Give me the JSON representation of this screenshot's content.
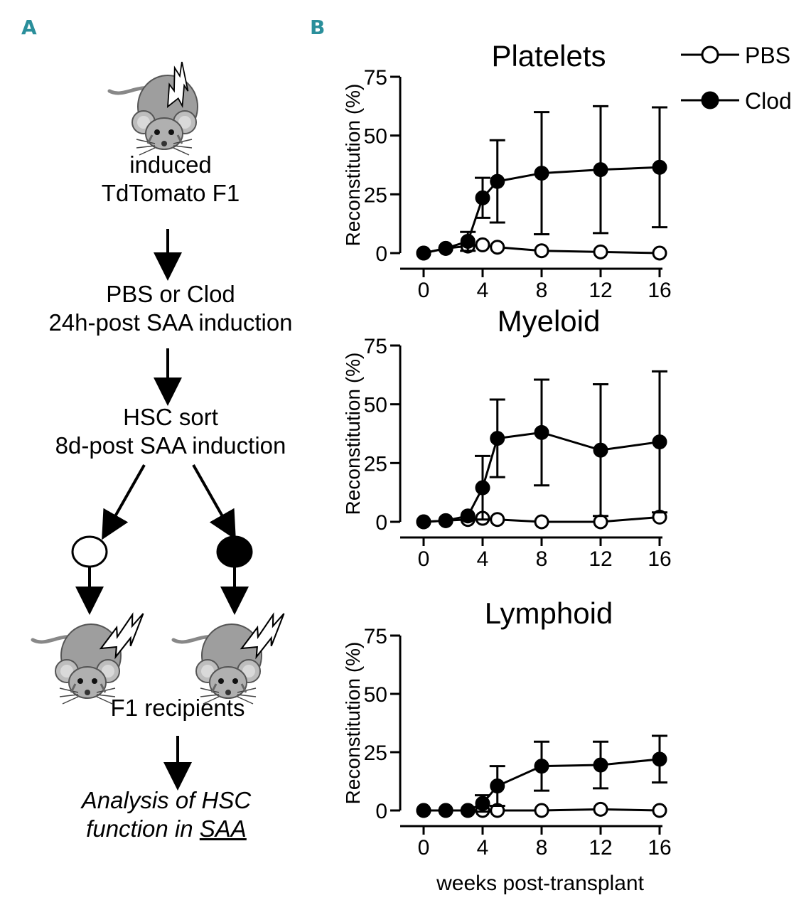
{
  "panels": {
    "a_label": "A",
    "b_label": "B"
  },
  "flow": {
    "step1_line1": "induced",
    "step1_line2": "TdTomato F1",
    "step2_line1": "PBS or Clod",
    "step2_line2": "24h-post SAA induction",
    "step3_line1": "HSC sort",
    "step3_line2": "8d-post SAA induction",
    "step4": "F1 recipients",
    "step5_line1": "Analysis of HSC",
    "step5_line2_prefix": "function in ",
    "step5_line2_underlined": "SAA",
    "icons": [
      "mouse-icon",
      "lightning-bolt-icon",
      "open-circle-icon",
      "filled-circle-icon",
      "arrow-down-icon"
    ]
  },
  "legend": [
    {
      "label": "PBS",
      "marker": "open-circle",
      "color": "#000000"
    },
    {
      "label": "Clod",
      "marker": "filled-circle",
      "color": "#000000"
    }
  ],
  "xlabel": "weeks post-transplant",
  "chart_data": [
    {
      "type": "line",
      "title": "Platelets",
      "xlabel": "weeks post-transplant",
      "ylabel": "Reconstitution (%)",
      "xticks": [
        0,
        4,
        8,
        12,
        16
      ],
      "yticks": [
        0,
        25,
        50,
        75
      ],
      "ylim": [
        0,
        75
      ],
      "xlim": [
        0,
        16
      ],
      "series": [
        {
          "name": "PBS",
          "marker": "open",
          "x": [
            0,
            1.5,
            3,
            4,
            5,
            8,
            12,
            16
          ],
          "y": [
            0,
            2,
            3,
            3.5,
            2.5,
            1,
            0.5,
            0
          ],
          "err": [
            0,
            0,
            0,
            0,
            0,
            0,
            0,
            0
          ]
        },
        {
          "name": "Clod",
          "marker": "filled",
          "x": [
            0,
            1.5,
            3,
            4,
            5,
            8,
            12,
            16
          ],
          "y": [
            0,
            2,
            5,
            23.5,
            30.5,
            34,
            35.5,
            36.5
          ],
          "err": [
            0,
            0,
            4,
            8.5,
            17.5,
            26,
            27,
            25.5
          ]
        }
      ]
    },
    {
      "type": "line",
      "title": "Myeloid",
      "xlabel": "weeks post-transplant",
      "ylabel": "Reconstitution (%)",
      "xticks": [
        0,
        4,
        8,
        12,
        16
      ],
      "yticks": [
        0,
        25,
        50,
        75
      ],
      "ylim": [
        0,
        75
      ],
      "xlim": [
        0,
        16
      ],
      "series": [
        {
          "name": "PBS",
          "marker": "open",
          "x": [
            0,
            1.5,
            3,
            4,
            5,
            8,
            12,
            16
          ],
          "y": [
            0,
            0.5,
            1,
            1.5,
            1,
            0,
            0,
            2
          ],
          "err": [
            0,
            0,
            0,
            0,
            0,
            0,
            0,
            0
          ]
        },
        {
          "name": "Clod",
          "marker": "filled",
          "x": [
            0,
            1.5,
            3,
            4,
            5,
            8,
            12,
            16
          ],
          "y": [
            0,
            0.5,
            2.5,
            14.5,
            35.5,
            38,
            30.5,
            34
          ],
          "err": [
            0,
            0,
            0,
            13.5,
            16.5,
            22.5,
            28,
            30
          ]
        }
      ]
    },
    {
      "type": "line",
      "title": "Lymphoid",
      "xlabel": "weeks post-transplant",
      "ylabel": "Reconstitution (%)",
      "xticks": [
        0,
        4,
        8,
        12,
        16
      ],
      "yticks": [
        0,
        25,
        50,
        75
      ],
      "ylim": [
        0,
        75
      ],
      "xlim": [
        0,
        16
      ],
      "series": [
        {
          "name": "PBS",
          "marker": "open",
          "x": [
            0,
            1.5,
            3,
            4,
            5,
            8,
            12,
            16
          ],
          "y": [
            0,
            0,
            0,
            0,
            0,
            0,
            0.5,
            0
          ],
          "err": [
            0,
            0,
            0,
            0,
            0,
            0,
            0,
            0
          ]
        },
        {
          "name": "Clod",
          "marker": "filled",
          "x": [
            0,
            1.5,
            3,
            4,
            5,
            8,
            12,
            16
          ],
          "y": [
            0,
            0,
            0,
            3,
            10.5,
            19,
            19.5,
            22
          ],
          "err": [
            0,
            0,
            0,
            3.5,
            8.5,
            10.5,
            10,
            10
          ]
        }
      ]
    }
  ]
}
